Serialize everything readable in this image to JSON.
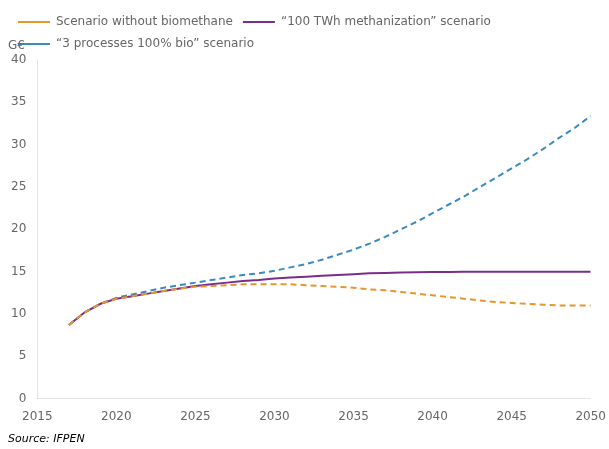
{
  "chart_data": {
    "type": "line",
    "ylabel": "G€",
    "source": "Source: IFPEN",
    "xlim": [
      2015,
      2050
    ],
    "ylim": [
      0,
      40
    ],
    "xticks": [
      2015,
      2020,
      2025,
      2030,
      2035,
      2040,
      2045,
      2050
    ],
    "yticks": [
      0,
      5,
      10,
      15,
      20,
      25,
      30,
      35,
      40
    ],
    "grid": false,
    "legend": "upper left",
    "x": [
      2017,
      2018,
      2019,
      2020,
      2021,
      2022,
      2023,
      2024,
      2025,
      2026,
      2027,
      2028,
      2029,
      2030,
      2031,
      2032,
      2033,
      2034,
      2035,
      2036,
      2037,
      2038,
      2039,
      2040,
      2041,
      2042,
      2043,
      2044,
      2045,
      2046,
      2047,
      2048,
      2049,
      2050
    ],
    "series": [
      {
        "name": "Scenario without biomethane",
        "color": "#E8952A",
        "line_style": "dashed",
        "values": [
          8.7,
          10.2,
          11.2,
          11.8,
          12.1,
          12.4,
          12.7,
          13.0,
          13.2,
          13.3,
          13.4,
          13.5,
          13.5,
          13.5,
          13.5,
          13.4,
          13.3,
          13.2,
          13.1,
          12.9,
          12.8,
          12.6,
          12.4,
          12.2,
          12.0,
          11.8,
          11.6,
          11.4,
          11.3,
          11.2,
          11.1,
          11.0,
          11.0,
          11.0
        ]
      },
      {
        "name": "“100 TWh methanization” scenario",
        "color": "#7B2D8B",
        "line_style": "solid",
        "values": [
          8.7,
          10.2,
          11.2,
          11.8,
          12.1,
          12.4,
          12.7,
          13.0,
          13.3,
          13.5,
          13.7,
          13.9,
          14.0,
          14.2,
          14.3,
          14.4,
          14.5,
          14.6,
          14.7,
          14.8,
          14.85,
          14.9,
          14.92,
          14.95,
          14.97,
          14.98,
          14.99,
          15.0,
          15.0,
          15.0,
          15.0,
          15.0,
          15.0,
          15.0
        ]
      },
      {
        "name": "“3 processes 100% bio” scenario",
        "color": "#3A8BBF",
        "line_style": "dashed",
        "values": [
          8.7,
          10.2,
          11.2,
          11.9,
          12.3,
          12.7,
          13.1,
          13.4,
          13.7,
          14.0,
          14.3,
          14.6,
          14.8,
          15.1,
          15.5,
          15.9,
          16.4,
          17.0,
          17.6,
          18.3,
          19.1,
          20.0,
          20.9,
          21.9,
          22.9,
          23.9,
          25.0,
          26.1,
          27.2,
          28.3,
          29.5,
          30.8,
          32.0,
          33.4
        ]
      }
    ]
  }
}
